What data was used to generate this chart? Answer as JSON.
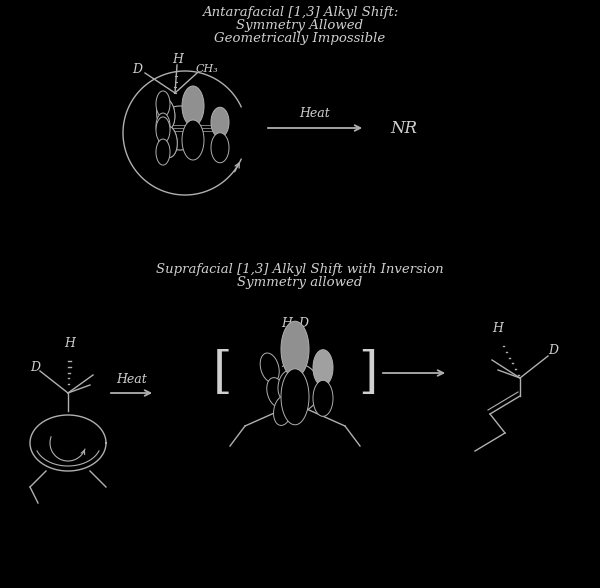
{
  "background_color": "#000000",
  "text_color": "#c8c8c8",
  "line_color": "#b0b0b0",
  "title1_line1": "Antarafacial [1,3] Alkyl Shift:",
  "title1_line2": "Symmetry Allowed",
  "title1_line3": "Geometrically Impossible",
  "title2_line1": "Suprafacial [1,3] Alkyl Shift with Inversion",
  "title2_line2": "Symmetry allowed",
  "heat_label": "Heat",
  "nr_label": "NR",
  "font_family": "serif",
  "title_fontsize": 9.5,
  "label_fontsize": 9
}
